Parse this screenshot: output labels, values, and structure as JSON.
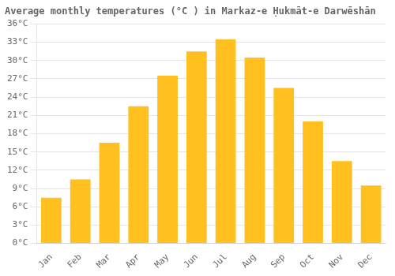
{
  "chart_data": {
    "type": "bar",
    "title": "Average monthly temperatures (°C ) in Markaz-e Ḥukmāt-e Darwēshān",
    "categories": [
      "Jan",
      "Feb",
      "Mar",
      "Apr",
      "May",
      "Jun",
      "Jul",
      "Aug",
      "Sep",
      "Oct",
      "Nov",
      "Dec"
    ],
    "values": [
      7.5,
      10.5,
      16.5,
      22.5,
      27.5,
      31.5,
      33.5,
      30.5,
      25.5,
      20.0,
      13.5,
      9.5
    ],
    "color": "#FFC020",
    "ylim": [
      0,
      36
    ],
    "yticks": [
      {
        "value": 0,
        "label": "0°C"
      },
      {
        "value": 3,
        "label": "3°C"
      },
      {
        "value": 6,
        "label": "6°C"
      },
      {
        "value": 9,
        "label": "9°C"
      },
      {
        "value": 12,
        "label": "12°C"
      },
      {
        "value": 15,
        "label": "15°C"
      },
      {
        "value": 18,
        "label": "18°C"
      },
      {
        "value": 21,
        "label": "21°C"
      },
      {
        "value": 24,
        "label": "24°C"
      },
      {
        "value": 27,
        "label": "27°C"
      },
      {
        "value": 30,
        "label": "30°C"
      },
      {
        "value": 33,
        "label": "33°C"
      },
      {
        "value": 36,
        "label": "36°C"
      }
    ],
    "grid": true
  }
}
